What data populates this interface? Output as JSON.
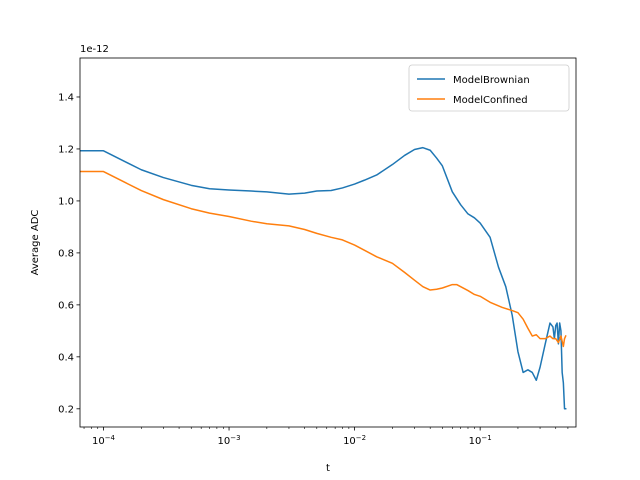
{
  "chart_data": {
    "type": "line",
    "title": "",
    "xlabel": "t",
    "ylabel": "Average ADC",
    "offset_text": "1e-12",
    "x_scale": "log",
    "xlim": [
      6.5e-05,
      0.58
    ],
    "ylim": [
      0.13,
      1.55
    ],
    "x_ticks": [
      {
        "value": 0.0001,
        "base": "10",
        "exp": "−4"
      },
      {
        "value": 0.001,
        "base": "10",
        "exp": "−3"
      },
      {
        "value": 0.01,
        "base": "10",
        "exp": "−2"
      },
      {
        "value": 0.1,
        "base": "10",
        "exp": "−1"
      }
    ],
    "y_ticks": [
      "0.2",
      "0.4",
      "0.6",
      "0.8",
      "1.0",
      "1.2",
      "1.4"
    ],
    "grid": false,
    "legend_position": "top-right",
    "series": [
      {
        "name": "ModelBrownian",
        "color": "#1f77b4",
        "x": [
          6.5e-05,
          0.0001,
          0.00015,
          0.0002,
          0.0003,
          0.0005,
          0.0007,
          0.001,
          0.0015,
          0.002,
          0.0025,
          0.003,
          0.004,
          0.005,
          0.0065,
          0.008,
          0.01,
          0.012,
          0.015,
          0.02,
          0.025,
          0.03,
          0.035,
          0.04,
          0.045,
          0.05,
          0.06,
          0.07,
          0.08,
          0.09,
          0.1,
          0.12,
          0.14,
          0.16,
          0.18,
          0.2,
          0.22,
          0.24,
          0.26,
          0.28,
          0.3,
          0.33,
          0.36,
          0.38,
          0.39,
          0.4,
          0.41,
          0.42,
          0.43,
          0.44,
          0.45,
          0.46,
          0.47,
          0.48
        ],
        "y": [
          1.193,
          1.193,
          1.15,
          1.12,
          1.09,
          1.06,
          1.047,
          1.042,
          1.038,
          1.035,
          1.03,
          1.026,
          1.03,
          1.038,
          1.04,
          1.05,
          1.065,
          1.08,
          1.1,
          1.14,
          1.175,
          1.198,
          1.205,
          1.195,
          1.165,
          1.135,
          1.035,
          0.985,
          0.95,
          0.935,
          0.915,
          0.86,
          0.745,
          0.67,
          0.56,
          0.42,
          0.34,
          0.35,
          0.34,
          0.31,
          0.36,
          0.45,
          0.53,
          0.515,
          0.47,
          0.52,
          0.53,
          0.45,
          0.53,
          0.5,
          0.34,
          0.3,
          0.2,
          0.2
        ]
      },
      {
        "name": "ModelConfined",
        "color": "#ff7f0e",
        "x": [
          6.5e-05,
          0.0001,
          0.00015,
          0.0002,
          0.0003,
          0.0005,
          0.0007,
          0.001,
          0.0015,
          0.002,
          0.003,
          0.004,
          0.005,
          0.0065,
          0.008,
          0.01,
          0.012,
          0.015,
          0.02,
          0.025,
          0.03,
          0.035,
          0.04,
          0.045,
          0.05,
          0.06,
          0.065,
          0.07,
          0.08,
          0.09,
          0.1,
          0.12,
          0.15,
          0.18,
          0.2,
          0.22,
          0.24,
          0.26,
          0.28,
          0.3,
          0.33,
          0.36,
          0.38,
          0.4,
          0.42,
          0.44,
          0.46,
          0.47,
          0.48
        ],
        "y": [
          1.113,
          1.113,
          1.07,
          1.04,
          1.005,
          0.97,
          0.953,
          0.94,
          0.922,
          0.912,
          0.904,
          0.89,
          0.875,
          0.86,
          0.85,
          0.83,
          0.81,
          0.785,
          0.76,
          0.725,
          0.695,
          0.67,
          0.657,
          0.66,
          0.665,
          0.678,
          0.678,
          0.67,
          0.655,
          0.64,
          0.633,
          0.61,
          0.59,
          0.578,
          0.57,
          0.545,
          0.51,
          0.48,
          0.485,
          0.47,
          0.47,
          0.48,
          0.47,
          0.47,
          0.455,
          0.48,
          0.44,
          0.47,
          0.48
        ]
      }
    ]
  }
}
